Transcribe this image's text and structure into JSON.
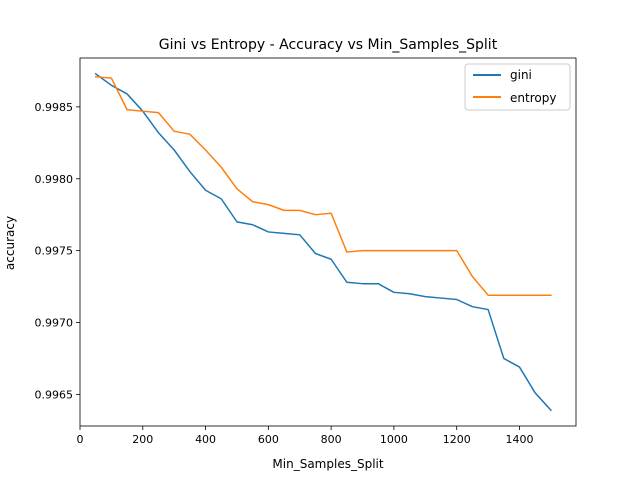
{
  "chart_data": {
    "type": "line",
    "title": "Gini vs Entropy - Accuracy vs Min_Samples_Split",
    "xlabel": "Min_Samples_Split",
    "ylabel": "accuracy",
    "xlim": [
      0,
      1580
    ],
    "ylim": [
      0.99628,
      0.99884
    ],
    "xticks": [
      {
        "value": 0,
        "label": "0"
      },
      {
        "value": 200,
        "label": "200"
      },
      {
        "value": 400,
        "label": "400"
      },
      {
        "value": 600,
        "label": "600"
      },
      {
        "value": 800,
        "label": "800"
      },
      {
        "value": 1000,
        "label": "1000"
      },
      {
        "value": 1200,
        "label": "1200"
      },
      {
        "value": 1400,
        "label": "1400"
      }
    ],
    "yticks": [
      {
        "value": 0.9965,
        "label": "0.9965"
      },
      {
        "value": 0.997,
        "label": "0.9970"
      },
      {
        "value": 0.9975,
        "label": "0.9975"
      },
      {
        "value": 0.998,
        "label": "0.9980"
      },
      {
        "value": 0.9985,
        "label": "0.9985"
      }
    ],
    "legend_position": "top-right",
    "x": [
      50,
      100,
      150,
      200,
      250,
      300,
      350,
      400,
      450,
      500,
      550,
      600,
      650,
      700,
      750,
      800,
      850,
      900,
      950,
      1000,
      1050,
      1100,
      1150,
      1200,
      1250,
      1300,
      1350,
      1400,
      1450,
      1500
    ],
    "series": [
      {
        "name": "gini",
        "color": "#1f77b4",
        "values": [
          0.99873,
          0.99865,
          0.99859,
          0.99847,
          0.99832,
          0.9982,
          0.99805,
          0.99792,
          0.99786,
          0.9977,
          0.99768,
          0.99763,
          0.99762,
          0.99761,
          0.99748,
          0.99744,
          0.99728,
          0.99727,
          0.99727,
          0.99721,
          0.9972,
          0.99718,
          0.99717,
          0.99716,
          0.99711,
          0.99709,
          0.99675,
          0.99669,
          0.99651,
          0.99639
        ]
      },
      {
        "name": "entropy",
        "color": "#ff7f0e",
        "values": [
          0.99871,
          0.9987,
          0.99848,
          0.99847,
          0.99846,
          0.99833,
          0.99831,
          0.9982,
          0.99808,
          0.99793,
          0.99784,
          0.99782,
          0.99778,
          0.99778,
          0.99775,
          0.99776,
          0.99749,
          0.9975,
          0.9975,
          0.9975,
          0.9975,
          0.9975,
          0.9975,
          0.9975,
          0.99732,
          0.99719,
          0.99719,
          0.99719,
          0.99719,
          0.99719
        ]
      }
    ]
  }
}
